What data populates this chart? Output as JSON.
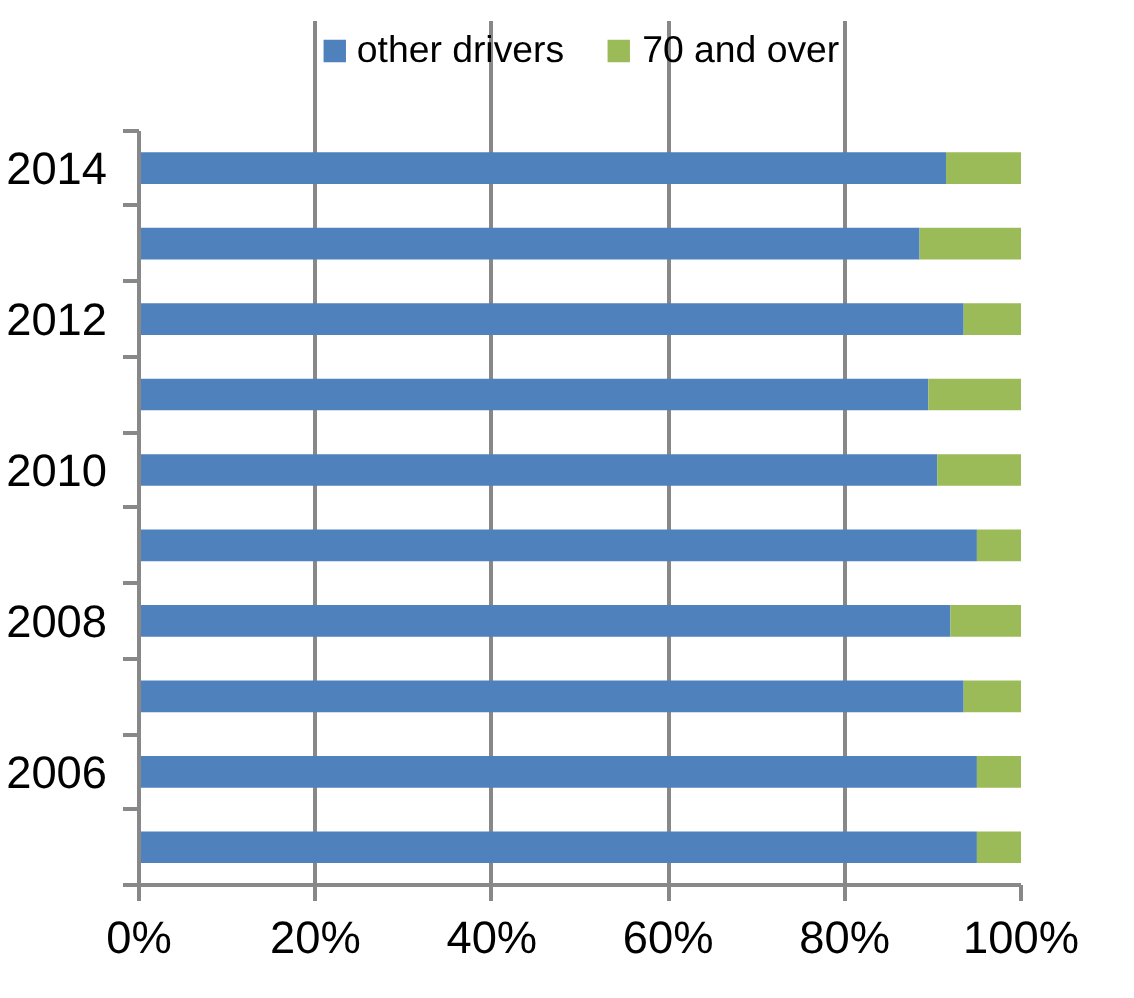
{
  "chart_data": {
    "type": "bar",
    "orientation": "horizontal",
    "stacked": true,
    "categories": [
      "2014",
      null,
      "2012",
      null,
      "2010",
      null,
      "2008",
      null,
      "2006",
      null
    ],
    "series": [
      {
        "name": "other drivers",
        "color": "#4f81bd",
        "values": [
          91.5,
          88.5,
          93.5,
          89.5,
          90.5,
          95,
          92,
          93.5,
          95,
          95
        ]
      },
      {
        "name": "70 and over",
        "color": "#9bbb59",
        "values": [
          8.5,
          11.5,
          6.5,
          10.5,
          9.5,
          5,
          8,
          6.5,
          5,
          5
        ]
      }
    ],
    "xlim": [
      0,
      100
    ],
    "xticks": [
      {
        "value": 0,
        "label": "0%"
      },
      {
        "value": 20,
        "label": "20%"
      },
      {
        "value": 40,
        "label": "40%"
      },
      {
        "value": 60,
        "label": "60%"
      },
      {
        "value": 80,
        "label": "80%"
      },
      {
        "value": 100,
        "label": "100%"
      }
    ],
    "grid": "x",
    "legend": "top"
  }
}
